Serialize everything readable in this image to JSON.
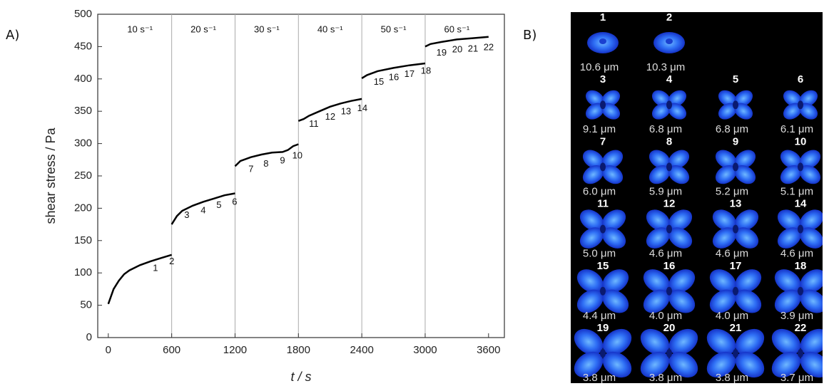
{
  "panel_a_label": "A)",
  "chart_data": {
    "type": "line",
    "x_label": "t / s",
    "y_label": "shear stress / Pa",
    "color": "#000000",
    "x": [
      0,
      50,
      100,
      150,
      200,
      300,
      400,
      500,
      600,
      600,
      600,
      650,
      700,
      800,
      900,
      1000,
      1100,
      1200,
      1200,
      1200,
      1250,
      1350,
      1450,
      1550,
      1650,
      1700,
      1750,
      1800,
      1800,
      1800,
      1850,
      1900,
      2000,
      2100,
      2200,
      2300,
      2400,
      2400,
      2400,
      2450,
      2550,
      2700,
      2850,
      3000,
      3000,
      3000,
      3050,
      3150,
      3300,
      3450,
      3600
    ],
    "values": [
      52,
      75,
      88,
      98,
      104,
      112,
      118,
      123,
      128,
      null,
      175,
      188,
      196,
      204,
      210,
      215,
      220,
      223,
      null,
      265,
      273,
      279,
      283,
      286,
      287,
      290,
      296,
      299,
      null,
      335,
      338,
      343,
      350,
      357,
      362,
      366,
      369,
      null,
      401,
      406,
      412,
      417,
      421,
      424,
      null,
      450,
      454,
      457,
      461,
      463,
      465
    ],
    "xlim": [
      -100,
      3750
    ],
    "ylim": [
      0,
      500
    ],
    "xticks": [
      0,
      600,
      1200,
      1800,
      2400,
      3000,
      3600
    ],
    "yticks": [
      0,
      50,
      100,
      150,
      200,
      250,
      300,
      350,
      400,
      450,
      500
    ],
    "separators": [
      600,
      1200,
      1800,
      2400,
      3000
    ],
    "rate_labels": [
      "10 s⁻¹",
      "20 s⁻¹",
      "30 s⁻¹",
      "40 s⁻¹",
      "50 s⁻¹",
      "60 s⁻¹"
    ],
    "point_labels": [
      {
        "label": "1",
        "x": 446,
        "y": 107
      },
      {
        "label": "2",
        "x": 601,
        "y": 117
      },
      {
        "label": "3",
        "x": 743,
        "y": 189
      },
      {
        "label": "4",
        "x": 899,
        "y": 196
      },
      {
        "label": "5",
        "x": 1047,
        "y": 204
      },
      {
        "label": "6",
        "x": 1196,
        "y": 209
      },
      {
        "label": "7",
        "x": 1351,
        "y": 260
      },
      {
        "label": "8",
        "x": 1493,
        "y": 268
      },
      {
        "label": "9",
        "x": 1649,
        "y": 273
      },
      {
        "label": "10",
        "x": 1790,
        "y": 281
      },
      {
        "label": "11",
        "x": 1946,
        "y": 330
      },
      {
        "label": "12",
        "x": 2101,
        "y": 341
      },
      {
        "label": "13",
        "x": 2250,
        "y": 349
      },
      {
        "label": "14",
        "x": 2405,
        "y": 354
      },
      {
        "label": "15",
        "x": 2561,
        "y": 395
      },
      {
        "label": "16",
        "x": 2703,
        "y": 402
      },
      {
        "label": "17",
        "x": 2851,
        "y": 407
      },
      {
        "label": "18",
        "x": 3007,
        "y": 412
      },
      {
        "label": "19",
        "x": 3155,
        "y": 440
      },
      {
        "label": "20",
        "x": 3304,
        "y": 445
      },
      {
        "label": "21",
        "x": 3453,
        "y": 446
      },
      {
        "label": "22",
        "x": 3601,
        "y": 448
      }
    ]
  },
  "panel_b": {
    "label": "B)",
    "cells": [
      {
        "number": "1",
        "size": "10.6 μm"
      },
      {
        "number": "2",
        "size": "10.3 μm"
      },
      {
        "number": "3",
        "size": "9.1 μm"
      },
      {
        "number": "4",
        "size": "6.8 μm"
      },
      {
        "number": "5",
        "size": "6.8 μm"
      },
      {
        "number": "6",
        "size": "6.1 μm"
      },
      {
        "number": "7",
        "size": "6.0 μm"
      },
      {
        "number": "8",
        "size": "5.9 μm"
      },
      {
        "number": "9",
        "size": "5.2 μm"
      },
      {
        "number": "10",
        "size": "5.1 μm"
      },
      {
        "number": "11",
        "size": "5.0 μm"
      },
      {
        "number": "12",
        "size": "4.6 μm"
      },
      {
        "number": "13",
        "size": "4.6 μm"
      },
      {
        "number": "14",
        "size": "4.6 μm"
      },
      {
        "number": "15",
        "size": "4.4 μm"
      },
      {
        "number": "16",
        "size": "4.0 μm"
      },
      {
        "number": "17",
        "size": "4.0 μm"
      },
      {
        "number": "18",
        "size": "3.9 μm"
      },
      {
        "number": "19",
        "size": "3.8 μm"
      },
      {
        "number": "20",
        "size": "3.8 μm"
      },
      {
        "number": "21",
        "size": "3.8 μm"
      },
      {
        "number": "22",
        "size": "3.7 μm"
      }
    ]
  }
}
